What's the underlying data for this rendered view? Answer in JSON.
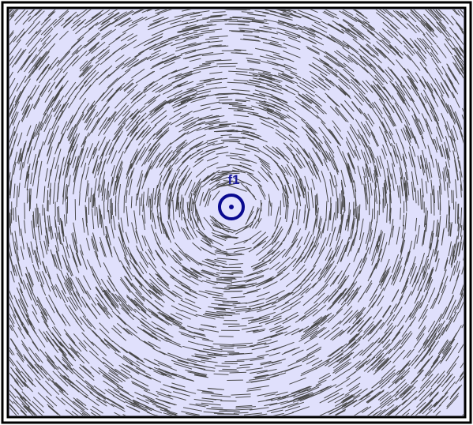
{
  "field": {
    "source": {
      "label": "f1"
    }
  }
}
